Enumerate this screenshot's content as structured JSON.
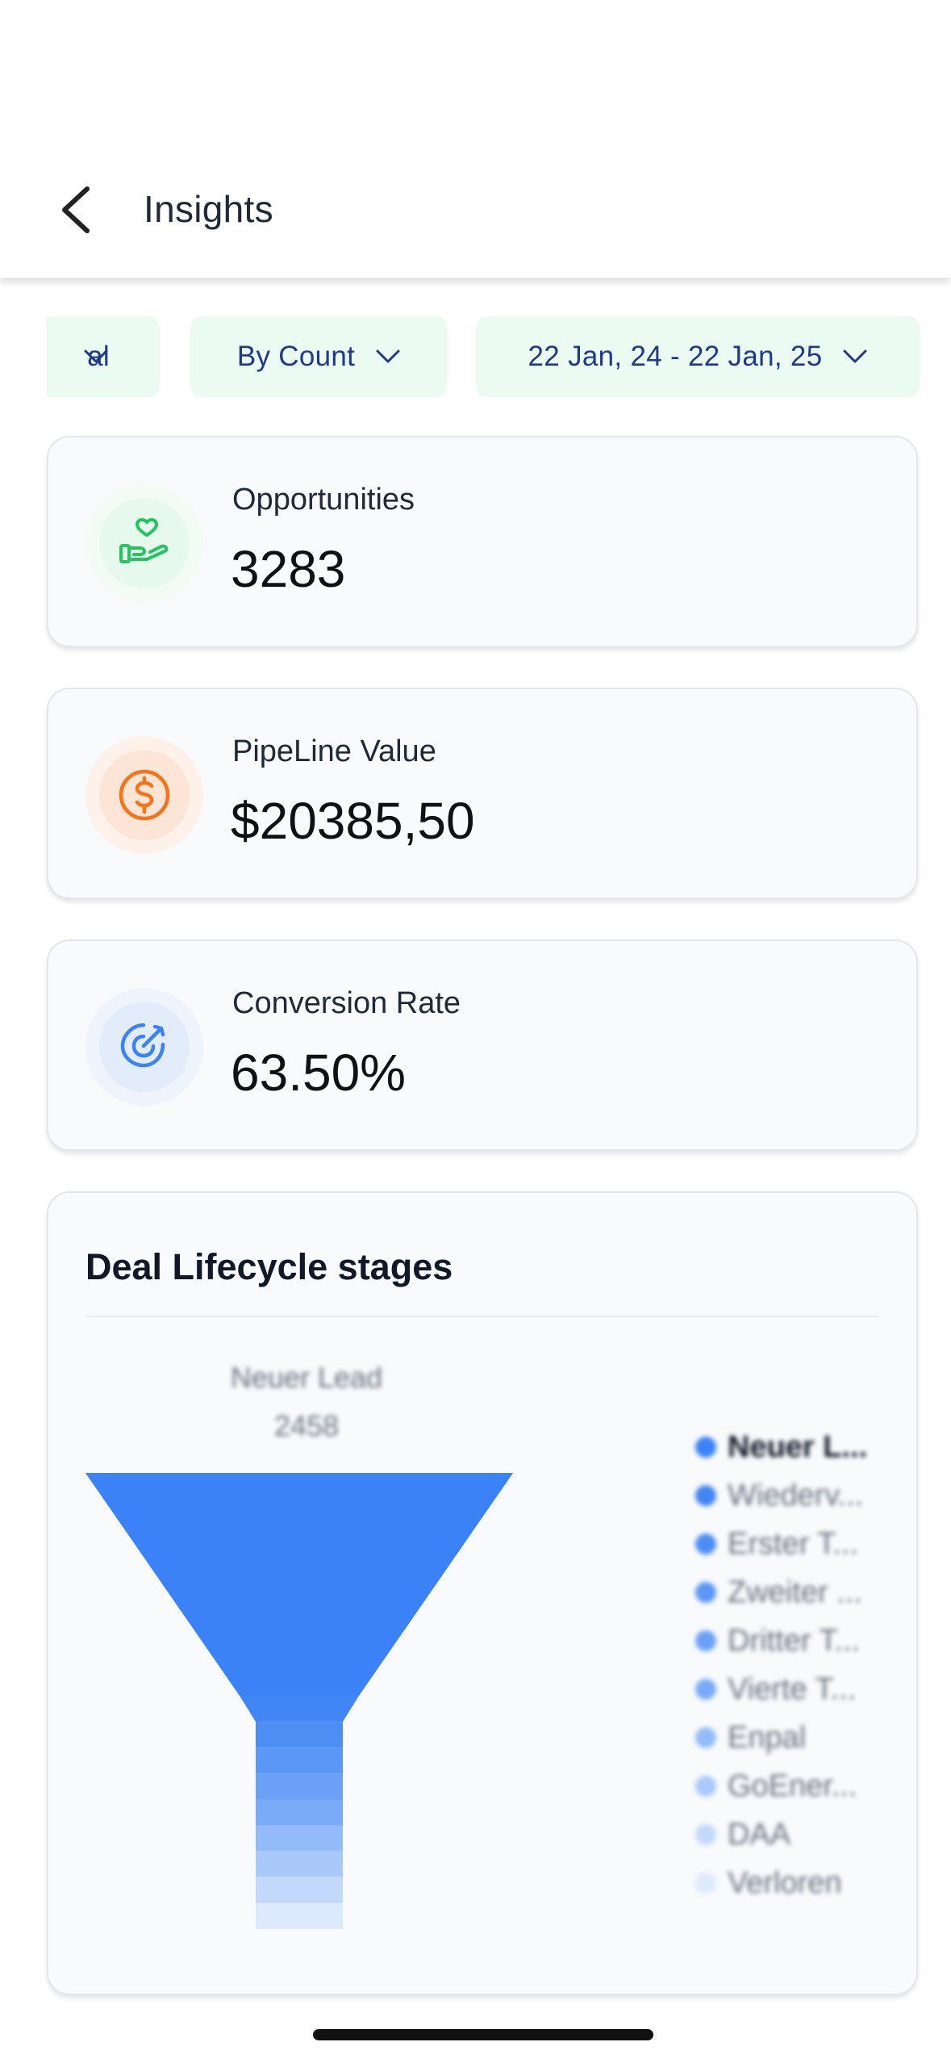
{
  "header": {
    "title": "Insights"
  },
  "filters": {
    "chip1": "al",
    "chip2": "By Count",
    "chip3": "22 Jan, 24 - 22 Jan, 25"
  },
  "stats": {
    "opportunities": {
      "label": "Opportunities",
      "value": "3283",
      "icon": "hand-heart-icon",
      "color": "#22c55e"
    },
    "pipeline": {
      "label": "PipeLine Value",
      "value": "$20385,50",
      "icon": "dollar-circle-icon",
      "color": "#f97316"
    },
    "conversion": {
      "label": "Conversion Rate",
      "value": "63.50%",
      "icon": "target-arrow-icon",
      "color": "#3b82f6"
    }
  },
  "chart": {
    "title": "Deal Lifecycle stages"
  },
  "chart_data": {
    "type": "funnel",
    "title": "Deal Lifecycle stages",
    "top_label": {
      "name": "Neuer Lead",
      "value": 2458
    },
    "stages": [
      {
        "name": "Neuer L...",
        "value": 2458,
        "color": "#3b82f6"
      },
      {
        "name": "Wiederv...",
        "value": null,
        "color": "#4285f4"
      },
      {
        "name": "Erster T...",
        "value": null,
        "color": "#4d8ef5"
      },
      {
        "name": "Zweiter ...",
        "value": null,
        "color": "#5b97f6"
      },
      {
        "name": "Dritter T...",
        "value": null,
        "color": "#6aa1f7"
      },
      {
        "name": "Vierte T...",
        "value": null,
        "color": "#7aabf8"
      },
      {
        "name": "Enpal",
        "value": null,
        "color": "#93bbf9"
      },
      {
        "name": "GoEner...",
        "value": null,
        "color": "#a9c9fa"
      },
      {
        "name": "DAA",
        "value": null,
        "color": "#c3d9fb"
      },
      {
        "name": "Verloren",
        "value": null,
        "color": "#dde9fd"
      }
    ]
  }
}
